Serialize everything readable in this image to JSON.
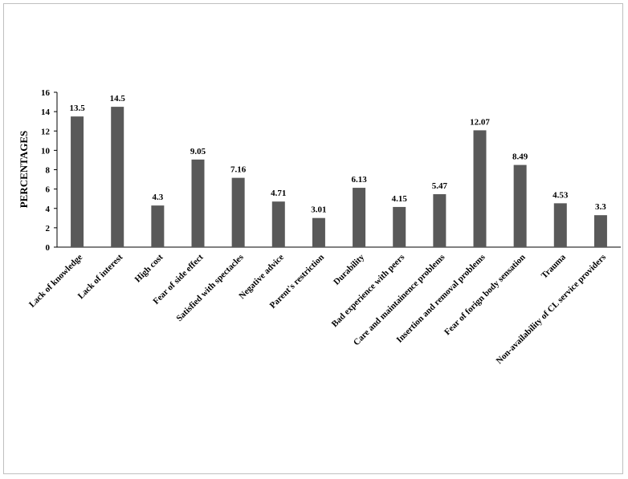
{
  "chart_data": {
    "type": "bar",
    "title": "",
    "xlabel": "",
    "ylabel": "PERCENTAGES",
    "ylim": [
      0,
      16
    ],
    "yticks": [
      0,
      2,
      4,
      6,
      8,
      10,
      12,
      14,
      16
    ],
    "grid": false,
    "legend": "none",
    "bar_color": "#595959",
    "categories": [
      "Lack of knowledge",
      "Lack of interest",
      "High cost",
      "Fear of side effect",
      "Satisfied with spectacles",
      "Negative advice",
      "Parent's restriction",
      "Durability",
      "Bad experience with peers",
      "Care and maintainence problems",
      "Insertion and removal problems",
      "Fear of forign body sensation",
      "Trauma",
      "Non-availability of CL service providers"
    ],
    "values": [
      13.5,
      14.5,
      4.3,
      9.05,
      7.16,
      4.71,
      3.01,
      6.13,
      4.15,
      5.47,
      12.07,
      8.49,
      4.53,
      3.3
    ],
    "value_labels": [
      "13.5",
      "14.5",
      "4.3",
      "9.05",
      "7.16",
      "4.71",
      "3.01",
      "6.13",
      "4.15",
      "5.47",
      "12.07",
      "8.49",
      "4.53",
      "3.3"
    ]
  }
}
